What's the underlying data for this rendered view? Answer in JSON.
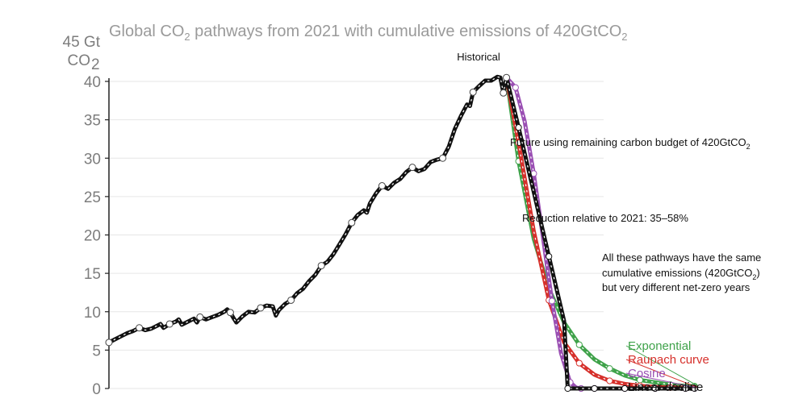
{
  "chart_data": {
    "type": "line",
    "title": "Global CO",
    "title_sub": "2",
    "title_rest": " pathways from 2021 with cumulative emissions of 420GtCO",
    "title_sub2": "2",
    "ylabel_line1": "45 Gt",
    "ylabel_line2": "CO",
    "ylabel_sub": "2",
    "ylim": [
      0,
      45
    ],
    "xlim": [
      1890,
      2090
    ],
    "yticks": [
      0,
      5,
      10,
      15,
      20,
      25,
      30,
      35,
      40
    ],
    "ytick_labels": [
      "0",
      "5",
      "10",
      "15",
      "20",
      "25",
      "30",
      "35",
      "40"
    ],
    "grid": "horizontal",
    "annotations": {
      "historical": "Historical",
      "future": "Future using remaining carbon budget of 420GtCO",
      "future_sub": "2",
      "reduction": "Reduction relative to 2021: 35–58%",
      "note_line1": "All these pathways have the same",
      "note_line2": "cumulative emissions (420GtCO",
      "note_line2_sub": "2",
      "note_line2_end": ")",
      "note_line3": "but very different net-zero years"
    },
    "historical": {
      "x": [
        1890,
        1892,
        1894,
        1896,
        1898,
        1900,
        1902,
        1904,
        1906,
        1907,
        1908,
        1910,
        1912,
        1913,
        1914,
        1916,
        1918,
        1919,
        1920,
        1922,
        1924,
        1926,
        1928,
        1929,
        1930,
        1931,
        1932,
        1934,
        1936,
        1938,
        1940,
        1942,
        1944,
        1945,
        1946,
        1948,
        1950,
        1952,
        1954,
        1956,
        1958,
        1960,
        1962,
        1964,
        1966,
        1968,
        1970,
        1972,
        1974,
        1975,
        1976,
        1978,
        1980,
        1982,
        1984,
        1986,
        1988,
        1990,
        1992,
        1994,
        1996,
        1998,
        2000,
        2002,
        2004,
        2006,
        2008,
        2009,
        2010,
        2012,
        2014,
        2016,
        2018,
        2019,
        2020,
        2021
      ],
      "y": [
        6.0,
        6.4,
        6.8,
        7.2,
        7.5,
        7.9,
        7.6,
        7.8,
        8.2,
        8.4,
        7.9,
        8.4,
        8.7,
        9.0,
        8.3,
        8.7,
        9.1,
        8.6,
        9.3,
        9.0,
        9.3,
        9.6,
        10.0,
        10.3,
        9.9,
        9.2,
        8.6,
        9.4,
        10.0,
        9.9,
        10.5,
        10.8,
        10.7,
        9.5,
        10.2,
        11.0,
        11.5,
        12.4,
        13.0,
        14.0,
        14.8,
        16.0,
        16.5,
        17.5,
        18.8,
        20.1,
        21.6,
        22.6,
        23.2,
        22.9,
        24.1,
        25.4,
        26.4,
        26.0,
        26.8,
        27.3,
        28.2,
        28.8,
        28.3,
        28.6,
        29.5,
        29.8,
        30.0,
        31.5,
        33.8,
        35.5,
        37.0,
        36.8,
        38.6,
        39.4,
        40.1,
        40.1,
        40.6,
        40.5,
        38.5,
        40.5
      ]
    },
    "series": [
      {
        "name": "Linear decline",
        "color": "#111111",
        "x": [
          2021,
          2025,
          2030,
          2035,
          2040,
          2041.2,
          2045,
          2050,
          2055,
          2060,
          2065,
          2070,
          2075,
          2080,
          2083
        ],
        "y": [
          40.5,
          34.0,
          25.6,
          17.2,
          8.8,
          0.0,
          0.0,
          0.0,
          0.0,
          0.0,
          0.0,
          0.0,
          0.0,
          0.0,
          0.0
        ]
      },
      {
        "name": "Cosine",
        "color": "#9a4fb3",
        "x": [
          2021,
          2024,
          2027,
          2030,
          2033,
          2036,
          2039,
          2042,
          2044,
          2045.6,
          2047,
          2050,
          2055,
          2060,
          2065,
          2070,
          2075,
          2080,
          2083
        ],
        "y": [
          40.5,
          39.2,
          34.8,
          28.0,
          19.8,
          11.4,
          4.6,
          0.8,
          0.1,
          0.0,
          0.0,
          0.0,
          0.0,
          0.0,
          0.0,
          0.0,
          0.0,
          0.0,
          0.0
        ]
      },
      {
        "name": "Raupach curve",
        "color": "#d6302b",
        "x": [
          2021,
          2025,
          2030,
          2035,
          2040,
          2045,
          2050,
          2055,
          2060,
          2065,
          2070,
          2075,
          2080,
          2083
        ],
        "y": [
          40.5,
          32.0,
          20.5,
          11.5,
          6.0,
          3.3,
          1.8,
          1.0,
          0.6,
          0.35,
          0.2,
          0.12,
          0.08,
          0.06
        ]
      },
      {
        "name": "Exponential",
        "color": "#3fa24a",
        "x": [
          2021,
          2025,
          2030,
          2035,
          2040,
          2045,
          2050,
          2055,
          2060,
          2065,
          2070,
          2075,
          2080,
          2083
        ],
        "y": [
          40.5,
          29.6,
          19.5,
          13.0,
          8.6,
          5.7,
          3.8,
          2.6,
          1.7,
          1.1,
          0.8,
          0.5,
          0.35,
          0.3
        ]
      }
    ],
    "legend_placement": "right",
    "legend_colors": {
      "Exponential": "#3fa24a",
      "Raupach curve": "#d6302b",
      "Cosine": "#9a4fb3",
      "Linear decline": "#111111"
    }
  }
}
